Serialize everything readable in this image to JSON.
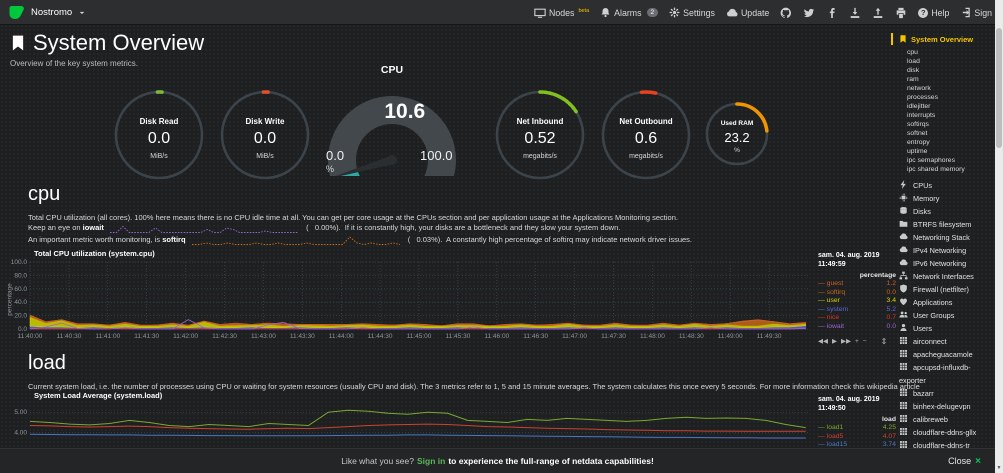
{
  "navbar": {
    "hostname": "Nostromo",
    "nodes_label": "Nodes",
    "nodes_beta": "beta",
    "alarms_label": "Alarms",
    "alarms_count": "2",
    "settings_label": "Settings",
    "update_label": "Update",
    "help_label": "Help",
    "signin_label": "Sign In"
  },
  "page": {
    "title": "System Overview",
    "subtitle": "Overview of the key system metrics."
  },
  "gauges": [
    {
      "label": "Disk Read",
      "value": "0.0",
      "unit": "MiB/s",
      "accent": "#7CB83D",
      "arc": {
        "start": -2,
        "end": 4,
        "dashed": false
      }
    },
    {
      "label": "Disk Write",
      "value": "0.0",
      "unit": "MiB/s",
      "accent": "#E0502A",
      "arc": {
        "start": -2,
        "end": 4,
        "dashed": false
      }
    },
    {
      "label": "Net Inbound",
      "value": "0.52",
      "unit": "megabits/s",
      "accent": "#82C020",
      "arc": {
        "start": 0,
        "end": 57,
        "dashed": true
      }
    },
    {
      "label": "Net Outbound",
      "value": "0.6",
      "unit": "megabits/s",
      "accent": "#E8411F",
      "arc": {
        "start": -6,
        "end": 13,
        "dashed": false
      }
    },
    {
      "label": "Used RAM",
      "value": "23.2",
      "unit": "%",
      "accent": "#EE9502",
      "arc": {
        "start": 0,
        "end": 84,
        "dashed": false
      }
    }
  ],
  "cpu_gauge": {
    "label": "CPU",
    "value": "10.6",
    "min": "0.0",
    "max": "100.0",
    "unit": "%",
    "accent": "#2FA8A2",
    "fraction": 0.106
  },
  "cpu_section": {
    "heading": "cpu",
    "para1": "Total CPU utilization (all cores). 100% here means there is no CPU idle time at all. You can get per core usage at the CPUs section and per application usage at the Applications Monitoring section.",
    "line2_pre": "Keep an eye on ",
    "line2_bold": "iowait",
    "line2_value": "(   0.00%).",
    "line2_post": "If it is constantly high, your disks are a bottleneck and they slow your system down.",
    "line3_pre": "An important metric worth monitoring, is ",
    "line3_bold": "softirq",
    "line3_value": "(   0.03%).",
    "line3_post": "A constantly high percentage of softirq may indicate network driver issues."
  },
  "load_section": {
    "heading": "load",
    "para1": "Current system load, i.e. the number of processes using CPU or waiting for system resources (usually CPU and disk). The 3 metrics refer to 1, 5 and 15 minute averages. The system calculates this once every 5 seconds. For more information check this wikipedia article"
  },
  "sparklines": {
    "iowait": {
      "color": "#9A65CF",
      "values": [
        0,
        0,
        4,
        0,
        0,
        0,
        0,
        3,
        0,
        0,
        0,
        0,
        0,
        0,
        0,
        2,
        0,
        0,
        3,
        2,
        0,
        0,
        0,
        0,
        1,
        0,
        0,
        0,
        0,
        0
      ]
    },
    "softirq": {
      "color": "#C26A16",
      "values": [
        0,
        0,
        1,
        0,
        0,
        1,
        0,
        0,
        0,
        1,
        0,
        0,
        1,
        0,
        0,
        0,
        1,
        0,
        0,
        0,
        0,
        0,
        5,
        1,
        0,
        1,
        0,
        0,
        1,
        0
      ]
    }
  },
  "toolbox": [
    {
      "name": "pan-backward",
      "glyph": "◀◀"
    },
    {
      "name": "play",
      "glyph": "▶"
    },
    {
      "name": "pan-forward",
      "glyph": "▶▶"
    },
    {
      "name": "zoom-in",
      "glyph": "+"
    },
    {
      "name": "zoom-out",
      "glyph": "−"
    },
    {
      "name": "resize",
      "glyph": "⇕"
    }
  ],
  "footer": {
    "pre": "Like what you see?",
    "signin": "Sign in",
    "post": "to experience the full-range of netdata capabilities!",
    "close_label": "Close",
    "close_glyph": "×"
  },
  "sidebar": {
    "active_label": "System Overview",
    "sub_items": [
      "cpu",
      "load",
      "disk",
      "ram",
      "network",
      "processes",
      "idlejitter",
      "interrupts",
      "softirqs",
      "softnet",
      "entropy",
      "uptime",
      "ipc semaphores",
      "ipc shared memory"
    ],
    "sections": [
      {
        "label": "CPUs",
        "icon": "bolt"
      },
      {
        "label": "Memory",
        "icon": "chip"
      },
      {
        "label": "Disks",
        "icon": "hdd"
      },
      {
        "label": "BTRFS filesystem",
        "icon": "folder"
      },
      {
        "label": "Networking Stack",
        "icon": "cloud"
      },
      {
        "label": "IPv4 Networking",
        "icon": "cloud"
      },
      {
        "label": "IPv6 Networking",
        "icon": "cloud"
      },
      {
        "label": "Network Interfaces",
        "icon": "sitemap"
      },
      {
        "label": "Firewall (netfilter)",
        "icon": "shield"
      },
      {
        "label": "Applications",
        "icon": "heart"
      },
      {
        "label": "User Groups",
        "icon": "users"
      },
      {
        "label": "Users",
        "icon": "user"
      },
      {
        "label": "airconnect",
        "icon": "grid"
      },
      {
        "label": "apacheguacamole",
        "icon": "grid"
      },
      {
        "label": "apcupsd-influxdb-exporter",
        "icon": "grid"
      },
      {
        "label": "bazarr",
        "icon": "grid"
      },
      {
        "label": "binhex-delugevpn",
        "icon": "grid"
      },
      {
        "label": "calibreweb",
        "icon": "grid"
      },
      {
        "label": "cloudflare-ddns-gllx",
        "icon": "grid"
      },
      {
        "label": "cloudflare-ddns-tr",
        "icon": "grid"
      }
    ]
  },
  "chart_data": [
    {
      "type": "area",
      "title": "Total CPU utilization (system.cpu)",
      "ylabel": "percentage",
      "ylim": [
        0,
        100
      ],
      "yticks": [
        {
          "v": 100,
          "label": "100.0"
        },
        {
          "v": 80,
          "label": "80.0"
        },
        {
          "v": 60,
          "label": "60.0"
        },
        {
          "v": 40,
          "label": "40.0"
        },
        {
          "v": 20,
          "label": "20.0"
        },
        {
          "v": 0,
          "label": "0.0"
        }
      ],
      "xticks": [
        "11:40:00",
        "11:40:30",
        "11:41:00",
        "11:41:30",
        "11:42:00",
        "11:42:30",
        "11:43:00",
        "11:43:30",
        "11:44:00",
        "11:44:30",
        "11:45:00",
        "11:45:30",
        "11:46:00",
        "11:46:30",
        "11:47:00",
        "11:47:30",
        "11:48:00",
        "11:48:30",
        "11:49:00",
        "11:49:30"
      ],
      "x_window_seconds": 600,
      "xtick_interval_seconds": 30,
      "legend_date": "sam. 04. aug. 2019",
      "legend_time": "11:49:59",
      "legend_header": "percentage",
      "stack_order": [
        "system",
        "user",
        "softirq",
        "guest"
      ],
      "series": [
        {
          "name": "guest",
          "color": "#CE5F2A",
          "value": "1.2",
          "render": "area",
          "values": [
            1,
            1,
            0,
            1,
            1,
            0,
            1,
            1,
            0,
            1,
            1,
            0,
            1,
            3,
            0,
            1,
            3,
            0,
            1,
            1,
            0,
            1,
            1,
            0,
            1,
            1,
            0,
            1,
            1,
            0,
            1,
            1,
            0,
            1,
            1,
            0,
            1,
            1,
            0,
            1,
            1,
            0,
            1,
            1,
            0,
            1,
            1,
            0,
            1,
            1
          ]
        },
        {
          "name": "softirq",
          "color": "#C26A16",
          "value": "0.0",
          "render": "area",
          "values": [
            2,
            1,
            1,
            1,
            0,
            1,
            1,
            0,
            1,
            1,
            0,
            1,
            1,
            0,
            1,
            1,
            0,
            1,
            0,
            1,
            1,
            0,
            1,
            1,
            0,
            1,
            0,
            1,
            1,
            0,
            1,
            0,
            1,
            1,
            0,
            1,
            0,
            1,
            1,
            0,
            1,
            1,
            0,
            1,
            1,
            6,
            8,
            3,
            1,
            1
          ]
        },
        {
          "name": "user",
          "color": "#D6D600",
          "value": "3.4",
          "render": "area",
          "values": [
            14,
            6,
            10,
            4,
            4,
            3,
            5,
            3,
            3,
            4,
            3,
            8,
            3,
            4,
            3,
            5,
            3,
            3,
            4,
            3,
            3,
            5,
            3,
            3,
            4,
            3,
            3,
            3,
            4,
            3,
            3,
            4,
            3,
            3,
            5,
            3,
            3,
            4,
            3,
            3,
            4,
            3,
            5,
            3,
            4,
            3,
            3,
            5,
            3,
            3
          ]
        },
        {
          "name": "system",
          "color": "#5F63D8",
          "value": "5.2",
          "render": "area",
          "values": [
            4,
            3,
            3,
            2,
            3,
            2,
            3,
            2,
            2,
            3,
            2,
            3,
            2,
            2,
            3,
            2,
            2,
            3,
            2,
            2,
            3,
            2,
            2,
            2,
            3,
            2,
            2,
            3,
            2,
            2,
            2,
            3,
            2,
            2,
            3,
            2,
            2,
            3,
            2,
            2,
            3,
            2,
            3,
            2,
            3,
            2,
            2,
            3,
            3,
            5
          ]
        },
        {
          "name": "nice",
          "color": "#DC3912",
          "value": "0.7",
          "render": "line",
          "values": [
            0,
            0,
            0,
            0,
            0,
            1,
            0,
            0,
            0,
            0,
            0,
            0,
            0,
            0,
            0,
            0,
            0,
            0,
            0,
            0,
            1,
            0,
            0,
            0,
            0,
            0,
            0,
            0,
            0,
            0,
            0,
            0,
            0,
            0,
            0,
            1,
            0,
            0,
            0,
            0,
            0,
            0,
            0,
            0,
            0,
            0,
            0,
            0,
            0,
            1
          ]
        },
        {
          "name": "iowait",
          "color": "#9A65CF",
          "value": "0.0",
          "render": "line",
          "values": [
            0,
            3,
            9,
            1,
            0,
            0,
            2,
            0,
            0,
            0,
            14,
            2,
            0,
            0,
            0,
            6,
            10,
            1,
            0,
            0,
            0,
            2,
            0,
            0,
            0,
            0,
            0,
            0,
            3,
            0,
            0,
            0,
            0,
            0,
            0,
            2,
            0,
            0,
            0,
            0,
            0,
            0,
            0,
            2,
            0,
            0,
            0,
            0,
            0,
            1
          ]
        }
      ]
    },
    {
      "type": "line",
      "title": "System Load Average (system.load)",
      "ylabel": "load",
      "ylim": [
        3.35,
        5.5
      ],
      "yticks": [
        {
          "v": 5,
          "label": "5.00"
        },
        {
          "v": 4,
          "label": "4.00"
        }
      ],
      "xticks": [],
      "x_window_seconds": 600,
      "xtick_interval_seconds": 30,
      "legend_date": "sam. 04. aug. 2019",
      "legend_time": "11:49:50",
      "legend_header": "load",
      "series": [
        {
          "name": "load1",
          "color": "#7DA82E",
          "value": "4.25",
          "render": "line",
          "values": [
            4.55,
            4.5,
            4.42,
            4.38,
            4.45,
            4.6,
            4.5,
            4.35,
            4.3,
            4.4,
            4.35,
            4.3,
            4.45,
            4.4,
            4.35,
            5.0,
            5.1,
            5.05,
            4.95,
            4.9,
            5.0,
            4.95,
            4.6,
            4.55,
            4.5,
            4.65,
            4.6,
            4.7,
            4.65,
            4.6,
            4.55,
            4.6,
            4.7,
            4.75,
            4.7,
            4.72,
            4.7,
            4.6,
            4.4,
            4.25
          ]
        },
        {
          "name": "load5",
          "color": "#CC4330",
          "value": "4.07",
          "render": "line",
          "values": [
            4.35,
            4.33,
            4.3,
            4.28,
            4.3,
            4.32,
            4.3,
            4.25,
            4.22,
            4.2,
            4.18,
            4.17,
            4.2,
            4.22,
            4.2,
            4.25,
            4.3,
            4.35,
            4.38,
            4.4,
            4.42,
            4.4,
            4.35,
            4.3,
            4.28,
            4.25,
            4.22,
            4.2,
            4.18,
            4.15,
            4.13,
            4.12,
            4.1,
            4.1,
            4.08,
            4.08,
            4.07,
            4.07,
            4.07,
            4.07
          ]
        },
        {
          "name": "load15",
          "color": "#4A77C8",
          "value": "3.74",
          "render": "line",
          "values": [
            3.92,
            3.91,
            3.9,
            3.9,
            3.89,
            3.89,
            3.88,
            3.88,
            3.87,
            3.86,
            3.86,
            3.85,
            3.85,
            3.85,
            3.85,
            3.86,
            3.87,
            3.88,
            3.88,
            3.89,
            3.89,
            3.88,
            3.87,
            3.86,
            3.85,
            3.84,
            3.83,
            3.82,
            3.81,
            3.8,
            3.79,
            3.78,
            3.77,
            3.77,
            3.76,
            3.75,
            3.75,
            3.74,
            3.74,
            3.74
          ]
        }
      ]
    }
  ]
}
